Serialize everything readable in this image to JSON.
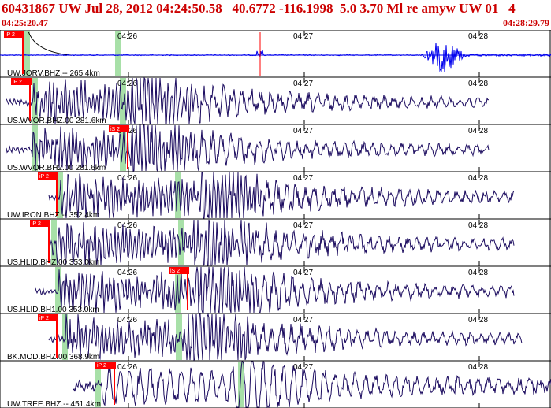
{
  "header": {
    "title": "60431867 UW Jul 28, 2012 04:24:50.58   40.6772 -116.1998  5.0 3.70 Ml re amyw UW 01   4",
    "start_time": "04:25:20.47",
    "end_time": "04:28:29.79"
  },
  "time_ticks": [
    "04:26",
    "04:27",
    "04:28"
  ],
  "colors": {
    "trace": "#1a0a5e",
    "first_trace": "#0000ee",
    "pick": "#ff0000",
    "window": "#a8e0a8",
    "grid": "#000000",
    "header_text": "#cc0000"
  },
  "channels": [
    {
      "label": "UW.JORV.BHZ.-- 265.4km",
      "pick_label": "iP 2",
      "amplitude": 0.7,
      "style": "first"
    },
    {
      "label": "US.WVOR.BHZ.00 281.6km",
      "pick_label": "iP 2",
      "amplitude": 1.0,
      "style": "normal"
    },
    {
      "label": "US.WVOR.BH2.00 281.6km",
      "pick_label": "iS 2",
      "amplitude": 1.0,
      "style": "normal"
    },
    {
      "label": "UW.IRON.BHZ.-- 352.4km",
      "pick_label": "iP 2",
      "amplitude": 1.0,
      "style": "normal"
    },
    {
      "label": "US.HLID.BHZ.00 353.0km",
      "pick_label": "iP 2",
      "amplitude": 1.0,
      "style": "normal"
    },
    {
      "label": "US.HLID.BH1.00 353.0km",
      "pick_label": "iS 2",
      "amplitude": 1.0,
      "style": "normal"
    },
    {
      "label": "BK.MOD.BHZ.00 368.9km",
      "pick_label": "iP 2",
      "amplitude": 1.0,
      "style": "normal"
    },
    {
      "label": "UW.TREE.BHZ.-- 451.4km",
      "pick_label": "iP 2",
      "amplitude": 1.0,
      "style": "normal"
    }
  ]
}
